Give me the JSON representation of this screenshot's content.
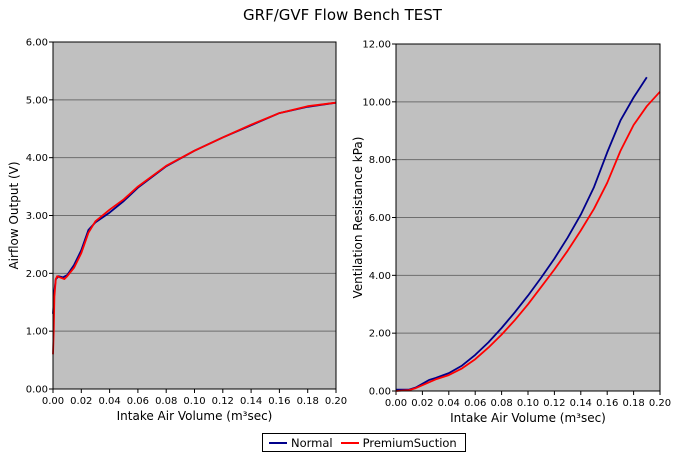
{
  "title": "GRF/GVF Flow Bench TEST",
  "legend": {
    "placement": "bottom-center",
    "entries": [
      {
        "name": "Normal",
        "color": "#00008B"
      },
      {
        "name": "PremiumSuction",
        "color": "#FF0000"
      }
    ]
  },
  "chart_data": [
    {
      "type": "line",
      "title": "",
      "xlabel": "Intake Air Volume (m³sec)",
      "ylabel": "Airflow Output (V)",
      "xlim": [
        0,
        0.2
      ],
      "ylim": [
        0,
        6
      ],
      "xticks": [
        "0.00",
        "0.02",
        "0.04",
        "0.06",
        "0.08",
        "0.10",
        "0.12",
        "0.14",
        "0.16",
        "0.18",
        "0.20"
      ],
      "yticks": [
        "0.00",
        "1.00",
        "2.00",
        "3.00",
        "4.00",
        "5.00",
        "6.00"
      ],
      "grid": true,
      "background": "#C0C0C0",
      "series": [
        {
          "name": "Normal",
          "color": "#00008B",
          "x": [
            0.0,
            0.001,
            0.002,
            0.004,
            0.007,
            0.01,
            0.015,
            0.02,
            0.025,
            0.03,
            0.04,
            0.05,
            0.06,
            0.08,
            0.1,
            0.12,
            0.14,
            0.16,
            0.18,
            0.2
          ],
          "y": [
            1.3,
            1.7,
            1.9,
            1.95,
            1.93,
            1.97,
            2.15,
            2.4,
            2.75,
            2.88,
            3.05,
            3.25,
            3.48,
            3.85,
            4.12,
            4.35,
            4.56,
            4.77,
            4.88,
            4.95
          ]
        },
        {
          "name": "PremiumSuction",
          "color": "#FF0000",
          "x": [
            0.0,
            0.0005,
            0.001,
            0.002,
            0.003,
            0.005,
            0.008,
            0.01,
            0.015,
            0.02,
            0.025,
            0.03,
            0.04,
            0.05,
            0.06,
            0.08,
            0.1,
            0.12,
            0.14,
            0.16,
            0.18,
            0.2
          ],
          "y": [
            0.6,
            1.0,
            1.6,
            1.9,
            1.95,
            1.93,
            1.9,
            1.95,
            2.1,
            2.35,
            2.7,
            2.9,
            3.1,
            3.28,
            3.5,
            3.86,
            4.12,
            4.35,
            4.57,
            4.77,
            4.89,
            4.95
          ]
        }
      ]
    },
    {
      "type": "line",
      "title": "",
      "xlabel": "Intake Air Volume (m³sec)",
      "ylabel": "Ventilation Resistance kPa)",
      "xlim": [
        0,
        0.2
      ],
      "ylim": [
        0,
        12
      ],
      "xticks": [
        "0.00",
        "0.02",
        "0.04",
        "0.06",
        "0.08",
        "0.10",
        "0.12",
        "0.14",
        "0.16",
        "0.18",
        "0.20"
      ],
      "yticks": [
        "0.00",
        "2.00",
        "4.00",
        "6.00",
        "8.00",
        "10.00",
        "12.00"
      ],
      "grid": true,
      "background": "#C0C0C0",
      "series": [
        {
          "name": "Normal",
          "color": "#00008B",
          "x": [
            0.0,
            0.01,
            0.015,
            0.02,
            0.025,
            0.03,
            0.04,
            0.05,
            0.06,
            0.07,
            0.08,
            0.09,
            0.1,
            0.11,
            0.12,
            0.13,
            0.14,
            0.15,
            0.16,
            0.17,
            0.18,
            0.19
          ],
          "y": [
            0.05,
            0.05,
            0.12,
            0.25,
            0.38,
            0.45,
            0.62,
            0.88,
            1.25,
            1.68,
            2.18,
            2.72,
            3.3,
            3.92,
            4.58,
            5.3,
            6.1,
            7.05,
            8.25,
            9.35,
            10.15,
            10.85
          ]
        },
        {
          "name": "PremiumSuction",
          "color": "#FF0000",
          "x": [
            0.0,
            0.01,
            0.015,
            0.02,
            0.025,
            0.03,
            0.04,
            0.05,
            0.06,
            0.07,
            0.08,
            0.09,
            0.1,
            0.11,
            0.12,
            0.13,
            0.14,
            0.15,
            0.16,
            0.17,
            0.18,
            0.19,
            0.2
          ],
          "y": [
            0.0,
            0.03,
            0.1,
            0.2,
            0.3,
            0.4,
            0.55,
            0.78,
            1.1,
            1.5,
            1.95,
            2.45,
            3.0,
            3.6,
            4.2,
            4.85,
            5.55,
            6.3,
            7.2,
            8.3,
            9.2,
            9.85,
            10.35
          ]
        }
      ]
    }
  ]
}
